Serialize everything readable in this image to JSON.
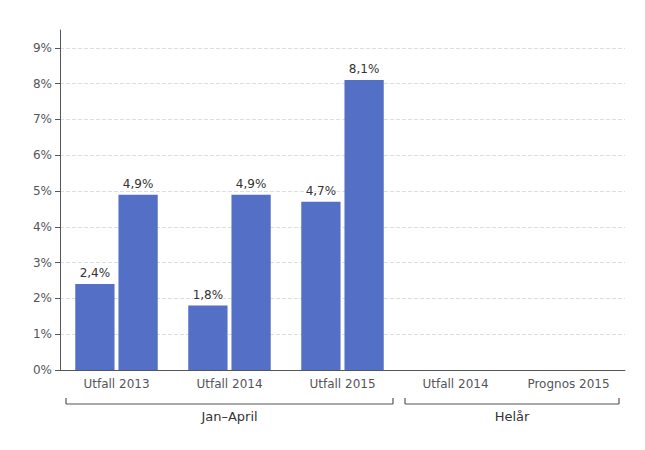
{
  "chart_data": {
    "type": "bar",
    "categories": [
      "Utfall 2013",
      "Utfall 2014",
      "Utfall 2015",
      "Utfall 2014",
      "Prognos 2015"
    ],
    "color": "#5470c6",
    "series": [
      {
        "values": [
          2.4,
          1.8,
          4.7,
          null,
          null
        ],
        "value_labels": [
          "2,4%",
          "1,8%",
          "4,7%",
          null,
          null
        ]
      },
      {
        "values": [
          4.9,
          4.9,
          8.1,
          null,
          null
        ],
        "value_labels": [
          "4,9%",
          "4,9%",
          "8,1%",
          null,
          null
        ]
      }
    ],
    "ylim": [
      0,
      9.5
    ],
    "yticks": [
      {
        "value": 0,
        "label": "0%"
      },
      {
        "value": 1,
        "label": "1%"
      },
      {
        "value": 2,
        "label": "2%"
      },
      {
        "value": 3,
        "label": "3%"
      },
      {
        "value": 4,
        "label": "4%"
      },
      {
        "value": 5,
        "label": "5%"
      },
      {
        "value": 6,
        "label": "6%"
      },
      {
        "value": 7,
        "label": "7%"
      },
      {
        "value": 8,
        "label": "8%"
      },
      {
        "value": 9,
        "label": "9%"
      }
    ],
    "grid": true,
    "data_labels": true,
    "annotations": [
      {
        "text": "Jan–April",
        "categories": 3
      },
      {
        "text": "Helår",
        "categories": 2
      }
    ]
  }
}
